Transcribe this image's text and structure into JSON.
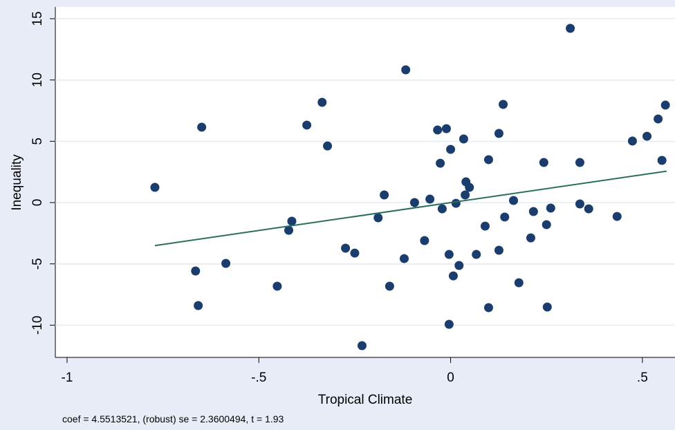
{
  "chart_data": {
    "type": "scatter",
    "x_label": "Tropical Climate",
    "y_label": "Inequality",
    "note": "coef = 4.5513521, (robust) se = 2.3600494, t = 1.93",
    "xlim": [
      -1.0306,
      0.585
    ],
    "ylim": [
      -12.63,
      15.96
    ],
    "xticks": [
      {
        "value": -1,
        "label": "-1"
      },
      {
        "value": -0.5,
        "label": "-.5"
      },
      0,
      {
        "value": 0.5,
        "label": ".5"
      }
    ],
    "yticks": [
      -10,
      -5,
      0,
      5,
      10,
      15
    ],
    "grid": true,
    "series": [
      {
        "color": "#1a3d6e",
        "x": [
          -0.771,
          -0.665,
          -0.658,
          -0.649,
          -0.586,
          -0.452,
          -0.422,
          -0.414,
          -0.375,
          -0.335,
          -0.321,
          -0.274,
          -0.25,
          -0.231,
          -0.189,
          -0.173,
          -0.159,
          -0.121,
          -0.117,
          -0.094,
          -0.068,
          -0.054,
          -0.034,
          -0.027,
          -0.022,
          -0.011,
          -0.004,
          -0.004,
          0,
          0.007,
          0.014,
          0.022,
          0.034,
          0.038,
          0.04,
          0.049,
          0.067,
          0.09,
          0.099,
          0.099,
          0.126,
          0.126,
          0.137,
          0.141,
          0.164,
          0.178,
          0.209,
          0.216,
          0.243,
          0.25,
          0.252,
          0.261,
          0.312,
          0.337,
          0.337,
          0.36,
          0.434,
          0.474,
          0.512,
          0.541,
          0.551,
          0.56
        ],
        "values": [
          1.24,
          -5.58,
          -8.4,
          6.15,
          -4.96,
          -6.82,
          -2.26,
          -1.52,
          6.32,
          8.18,
          4.62,
          -3.72,
          -4.12,
          -11.67,
          -1.24,
          0.62,
          -6.82,
          -4.57,
          10.83,
          0,
          -3.1,
          0.28,
          5.92,
          3.21,
          -0.51,
          6.03,
          -9.93,
          -4.23,
          4.34,
          -5.98,
          -0.06,
          -5.13,
          5.19,
          0.62,
          1.69,
          1.24,
          -4.23,
          -1.92,
          3.5,
          -8.57,
          5.64,
          -3.89,
          8.01,
          -1.18,
          0.17,
          -6.54,
          -2.88,
          -0.73,
          3.27,
          -1.8,
          -8.52,
          -0.45,
          14.21,
          3.27,
          -0.11,
          -0.51,
          -1.13,
          5.02,
          5.41,
          6.82,
          3.44,
          7.95
        ]
      },
      {
        "type": "line",
        "color": "#2a6e5e",
        "x": [
          -0.771,
          0.563
        ],
        "values": [
          -3.51,
          2.56
        ]
      }
    ]
  }
}
